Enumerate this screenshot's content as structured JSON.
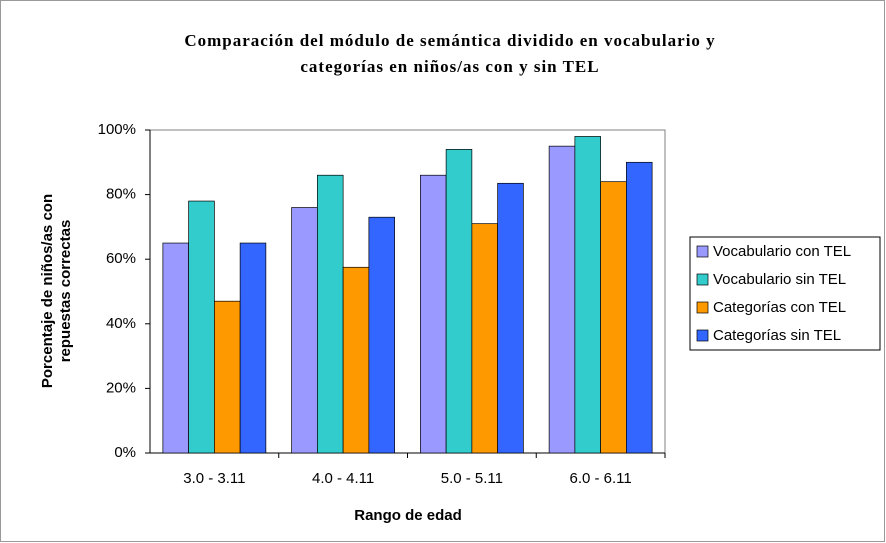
{
  "chart_data": {
    "type": "bar",
    "title": [
      "Comparación del módulo de semántica dividido en vocabulario y",
      "categorías en niños/as con y sin TEL"
    ],
    "x_label": "Rango de edad",
    "y_label": [
      "Porcentaje de niños/as con",
      "repuestas correctas"
    ],
    "categories": [
      "3.0 - 3.11",
      "4.0 - 4.11",
      "5.0 - 5.11",
      "6.0 - 6.11"
    ],
    "series": [
      {
        "name": "Vocabulario con TEL",
        "color": "#9999ff",
        "values": [
          65,
          76,
          86,
          95
        ]
      },
      {
        "name": "Vocabulario sin TEL",
        "color": "#33cccc",
        "values": [
          78,
          86,
          94,
          98
        ]
      },
      {
        "name": "Categorías con TEL",
        "color": "#ff9900",
        "values": [
          47,
          57.5,
          71,
          84
        ]
      },
      {
        "name": "Categorías sin TEL",
        "color": "#3366ff",
        "values": [
          65,
          73,
          83.5,
          90
        ]
      }
    ],
    "ylim": [
      0,
      100
    ],
    "yticks": [
      {
        "value": 0,
        "label": "0%"
      },
      {
        "value": 20,
        "label": "20%"
      },
      {
        "value": 40,
        "label": "40%"
      },
      {
        "value": 60,
        "label": "60%"
      },
      {
        "value": 80,
        "label": "80%"
      },
      {
        "value": 100,
        "label": "100%"
      }
    ],
    "grid": false,
    "legend": "right"
  }
}
